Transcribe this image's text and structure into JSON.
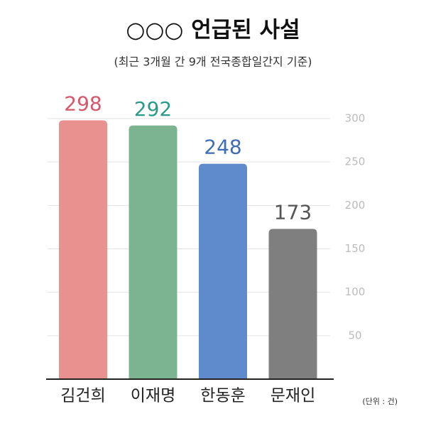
{
  "chart_data": {
    "type": "bar",
    "title": "○○○ 언급된 사설",
    "subtitle": "(최근 3개월 간 9개 전국종합일간지 기준)",
    "unit_note": "(단위 : 건)",
    "categories": [
      "김건희",
      "이재명",
      "한동훈",
      "문재인"
    ],
    "values": [
      298,
      292,
      248,
      173
    ],
    "colors": [
      "#e8918f",
      "#7cb492",
      "#5f8bcc",
      "#7f7f7f"
    ],
    "label_colors": [
      "#d6566b",
      "#2a9a8a",
      "#3f6db3",
      "#555555"
    ],
    "ylim": [
      0,
      300
    ],
    "yticks": [
      50,
      100,
      150,
      200,
      250,
      300
    ],
    "grid": true
  }
}
